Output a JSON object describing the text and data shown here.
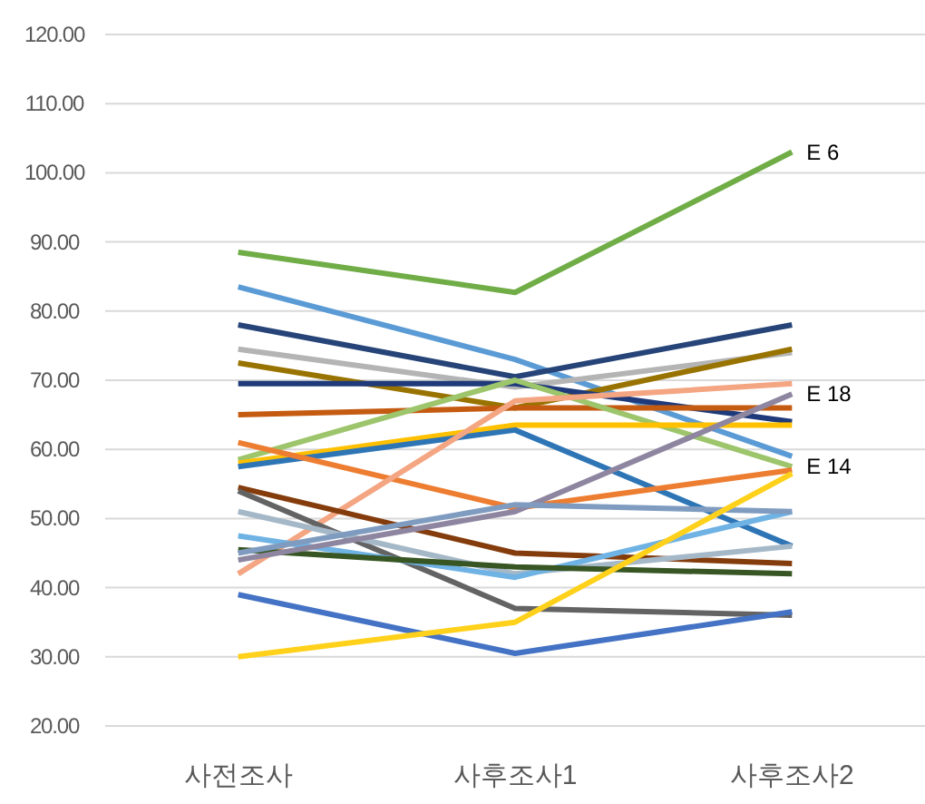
{
  "chart_data": {
    "type": "line",
    "categories": [
      "사전조사",
      "사후조사1",
      "사후조사2"
    ],
    "ylim": [
      20,
      120
    ],
    "yticks": [
      {
        "value": 20,
        "label": "20.00"
      },
      {
        "value": 30,
        "label": "30.00"
      },
      {
        "value": 40,
        "label": "40.00"
      },
      {
        "value": 50,
        "label": "50.00"
      },
      {
        "value": 60,
        "label": "60.00"
      },
      {
        "value": 70,
        "label": "70.00"
      },
      {
        "value": 80,
        "label": "80.00"
      },
      {
        "value": 90,
        "label": "90.00"
      },
      {
        "value": 100,
        "label": "100.00"
      },
      {
        "value": 110,
        "label": "110.00"
      },
      {
        "value": 120,
        "label": "120.00"
      }
    ],
    "grid": "y",
    "marker": "none",
    "line_style": "solid",
    "series": [
      {
        "color": "#70ad47",
        "values": [
          88.5,
          82.7,
          103
        ]
      },
      {
        "color": "#5b9bd5",
        "values": [
          83.5,
          73,
          59
        ]
      },
      {
        "color": "#264478",
        "values": [
          78,
          70.5,
          78
        ]
      },
      {
        "color": "#b4b4b4",
        "values": [
          74.5,
          69,
          74
        ]
      },
      {
        "color": "#997300",
        "values": [
          72.5,
          66,
          74.5
        ]
      },
      {
        "color": "#1f3a7a",
        "values": [
          69.5,
          69.5,
          64
        ]
      },
      {
        "color": "#c55a11",
        "values": [
          65,
          66,
          66
        ]
      },
      {
        "color": "#9dc56b",
        "values": [
          58.5,
          70,
          57.5
        ]
      },
      {
        "color": "#ffc000",
        "values": [
          58,
          63.5,
          63.5
        ]
      },
      {
        "color": "#2e75b6",
        "values": [
          57.5,
          62.8,
          46
        ]
      },
      {
        "color": "#ed7d31",
        "values": [
          61,
          51.5,
          57
        ]
      },
      {
        "color": "#f4a582",
        "values": [
          42,
          67,
          69.5
        ]
      },
      {
        "color": "#843c0c",
        "values": [
          54.5,
          45,
          43.5
        ]
      },
      {
        "color": "#636363",
        "values": [
          54,
          37,
          36
        ]
      },
      {
        "color": "#a5b8c8",
        "values": [
          51,
          42,
          46
        ]
      },
      {
        "color": "#6fb2e4",
        "values": [
          47.5,
          41.5,
          51
        ]
      },
      {
        "color": "#375623",
        "values": [
          45.5,
          43,
          42
        ]
      },
      {
        "color": "#8e86a0",
        "values": [
          44,
          51,
          68
        ]
      },
      {
        "color": "#7f9cc0",
        "values": [
          45,
          52,
          51
        ]
      },
      {
        "color": "#4472c4",
        "values": [
          39,
          30.5,
          36.5
        ]
      },
      {
        "color": "#ffd11a",
        "values": [
          30,
          35,
          56.5
        ]
      }
    ],
    "annotations": [
      {
        "text": "E 6",
        "x": "사후조사2",
        "y": 103
      },
      {
        "text": "E 18",
        "x": "사후조사2",
        "y": 68
      },
      {
        "text": "E 14",
        "x": "사후조사2",
        "y": 57.5
      }
    ]
  }
}
